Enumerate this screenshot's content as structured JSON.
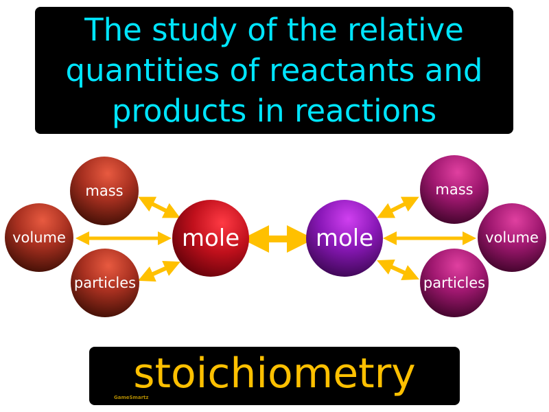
{
  "definition": "The study of the relative quantities of reactants and products in reactions",
  "term": "stoichiometry",
  "brand": "GameSmartz",
  "left_group": {
    "mass": "mass",
    "volume": "volume",
    "particles": "particles",
    "center": "mole"
  },
  "right_group": {
    "mass": "mass",
    "volume": "volume",
    "particles": "particles",
    "center": "mole"
  },
  "colors": {
    "definition_text": "#00e5ff",
    "term_text": "#ffc000",
    "arrows": "#ffc000"
  }
}
